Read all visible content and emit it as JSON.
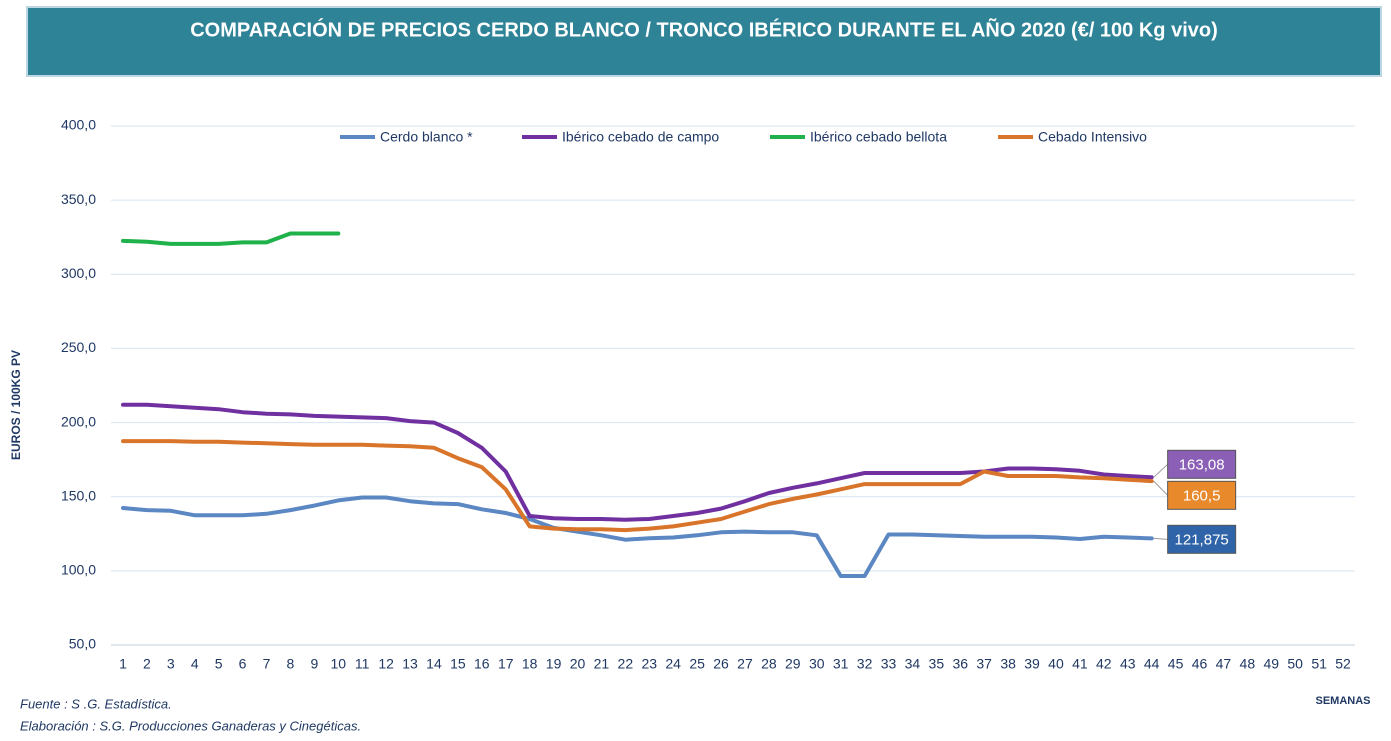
{
  "chart_data": {
    "type": "line",
    "title": "COMPARACIÓN DE PRECIOS CERDO BLANCO / TRONCO IBÉRICO DURANTE EL AÑO 2020 (€/ 100 Kg vivo)",
    "y_label": "EUROS / 100KG PV",
    "x_label": "SEMANAS",
    "source": "Fuente :  S .G. Estadística.",
    "credit": "Elaboración : S.G. Producciones Ganaderas y Cinegéticas.",
    "categories": [
      "1",
      "2",
      "3",
      "4",
      "5",
      "6",
      "7",
      "8",
      "9",
      "10",
      "11",
      "12",
      "13",
      "14",
      "15",
      "16",
      "17",
      "18",
      "19",
      "20",
      "21",
      "22",
      "23",
      "24",
      "25",
      "26",
      "27",
      "28",
      "29",
      "30",
      "31",
      "32",
      "33",
      "34",
      "35",
      "36",
      "37",
      "38",
      "39",
      "40",
      "41",
      "42",
      "43",
      "44",
      "45",
      "46",
      "47",
      "48",
      "49",
      "50",
      "51",
      "52"
    ],
    "ylim": [
      50,
      400
    ],
    "yticks": [
      {
        "value": 50,
        "label": "50,0"
      },
      {
        "value": 100,
        "label": "100,0"
      },
      {
        "value": 150,
        "label": "150,0"
      },
      {
        "value": 200,
        "label": "200,0"
      },
      {
        "value": 250,
        "label": "250,0"
      },
      {
        "value": 300,
        "label": "300,0"
      },
      {
        "value": 350,
        "label": "350,0"
      },
      {
        "value": 400,
        "label": "400,0"
      }
    ],
    "grid": true,
    "legend": "top",
    "series": [
      {
        "name": "Cerdo blanco *",
        "color": "#5b87c2",
        "label_color": "#2f64a8",
        "values": [
          142.4,
          141,
          140.5,
          137.5,
          137.5,
          137.5,
          138.5,
          141,
          144,
          147.5,
          149.5,
          149.5,
          147,
          145.5,
          145,
          141.5,
          139,
          135,
          129,
          126.5,
          124,
          121,
          122,
          122.5,
          124,
          126,
          126.5,
          126,
          126,
          124,
          96.5,
          96.5,
          124.5,
          124.5,
          124,
          123.5,
          123,
          123,
          123,
          122.5,
          121.5,
          123,
          122.5,
          121.875,
          null,
          null,
          null,
          null,
          null,
          null,
          null,
          null
        ],
        "value_labels": [
          null,
          null,
          null,
          null,
          null,
          null,
          null,
          null,
          null,
          null,
          null,
          null,
          null,
          null,
          null,
          null,
          null,
          null,
          null,
          null,
          null,
          null,
          null,
          null,
          null,
          null,
          null,
          null,
          null,
          null,
          null,
          null,
          null,
          null,
          null,
          null,
          null,
          null,
          null,
          null,
          null,
          null,
          null,
          "121,875",
          null,
          null,
          null,
          null,
          null,
          null,
          null,
          null
        ]
      },
      {
        "name": "Ibérico cebado de campo",
        "color": "#7030a0",
        "label_color": "#8a5fb5",
        "values": [
          212,
          212,
          211,
          210,
          209,
          207,
          206,
          205.5,
          204.5,
          204,
          203.5,
          203,
          201,
          200,
          193,
          183,
          167,
          137,
          135.5,
          135,
          135,
          134.5,
          135,
          137,
          139,
          142,
          147,
          152.5,
          156,
          159,
          162.5,
          166,
          166,
          166,
          166,
          166,
          167,
          169,
          169,
          168.5,
          167.5,
          165,
          164,
          163.08,
          null,
          null,
          null,
          null,
          null,
          null,
          null,
          null
        ],
        "value_labels": [
          null,
          null,
          null,
          null,
          null,
          null,
          null,
          null,
          null,
          null,
          null,
          null,
          null,
          null,
          null,
          null,
          null,
          null,
          null,
          null,
          null,
          null,
          null,
          null,
          null,
          null,
          null,
          null,
          null,
          null,
          null,
          null,
          null,
          null,
          null,
          null,
          null,
          null,
          null,
          null,
          null,
          null,
          null,
          "163,08",
          null,
          null,
          null,
          null,
          null,
          null,
          null,
          null
        ]
      },
      {
        "name": "Ibérico cebado bellota",
        "color": "#1fb14a",
        "values": [
          322.5,
          322,
          320.5,
          320.5,
          320.5,
          321.5,
          321.5,
          327.5,
          327.5,
          327.5,
          null,
          null,
          null,
          null,
          null,
          null,
          null,
          null,
          null,
          null,
          null,
          null,
          null,
          null,
          null,
          null,
          null,
          null,
          null,
          null,
          null,
          null,
          null,
          null,
          null,
          null,
          null,
          null,
          null,
          null,
          null,
          null,
          null,
          null,
          null,
          null,
          null,
          null,
          null,
          null,
          null,
          null
        ]
      },
      {
        "name": "Cebado Intensivo",
        "color": "#d9752a",
        "label_color": "#e8892c",
        "values": [
          187.5,
          187.5,
          187.5,
          187,
          187,
          186.5,
          186,
          185.5,
          185,
          185,
          185,
          184.5,
          184,
          183,
          176,
          170,
          155,
          130,
          128.5,
          128,
          128,
          127.5,
          128.5,
          130,
          132.5,
          135,
          140,
          145,
          148.5,
          151.5,
          155,
          158.5,
          158.5,
          158.5,
          158.5,
          158.5,
          167,
          164,
          164,
          164,
          163,
          162.5,
          161.5,
          160.5,
          null,
          null,
          null,
          null,
          null,
          null,
          null,
          null
        ],
        "value_labels": [
          null,
          null,
          null,
          null,
          null,
          null,
          null,
          null,
          null,
          null,
          null,
          null,
          null,
          null,
          null,
          null,
          null,
          null,
          null,
          null,
          null,
          null,
          null,
          null,
          null,
          null,
          null,
          null,
          null,
          null,
          null,
          null,
          null,
          null,
          null,
          null,
          null,
          null,
          null,
          null,
          null,
          null,
          null,
          "160,5",
          null,
          null,
          null,
          null,
          null,
          null,
          null,
          null
        ]
      }
    ]
  }
}
